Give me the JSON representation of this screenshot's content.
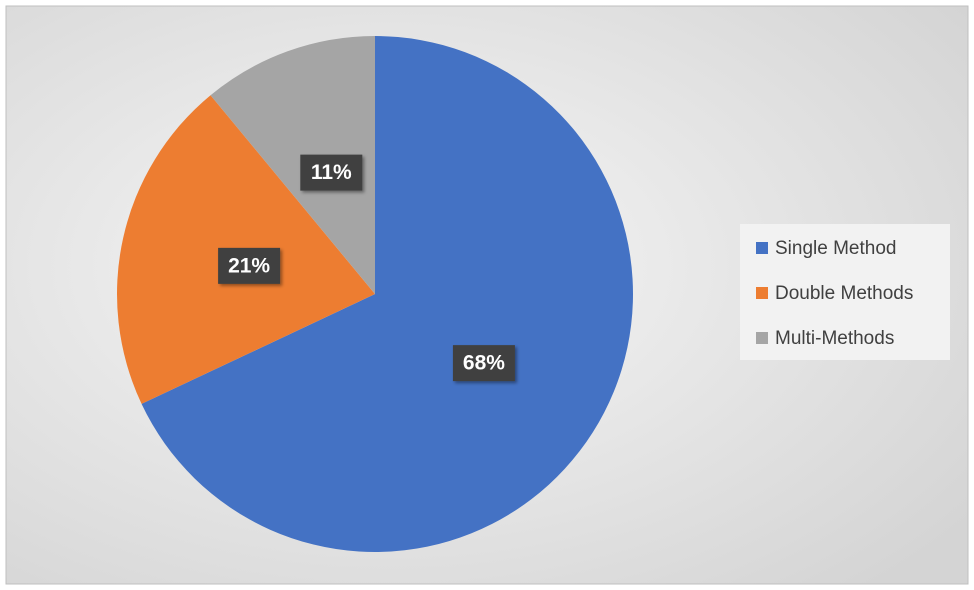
{
  "chart_data": {
    "type": "pie",
    "categories": [
      "Single Method",
      "Double Methods",
      "Multi-Methods"
    ],
    "values": [
      68,
      21,
      11
    ],
    "value_labels": [
      "68%",
      "21%",
      "11%"
    ],
    "colors": [
      "#4472c4",
      "#ed7d31",
      "#a5a5a5"
    ],
    "legend": "right"
  }
}
